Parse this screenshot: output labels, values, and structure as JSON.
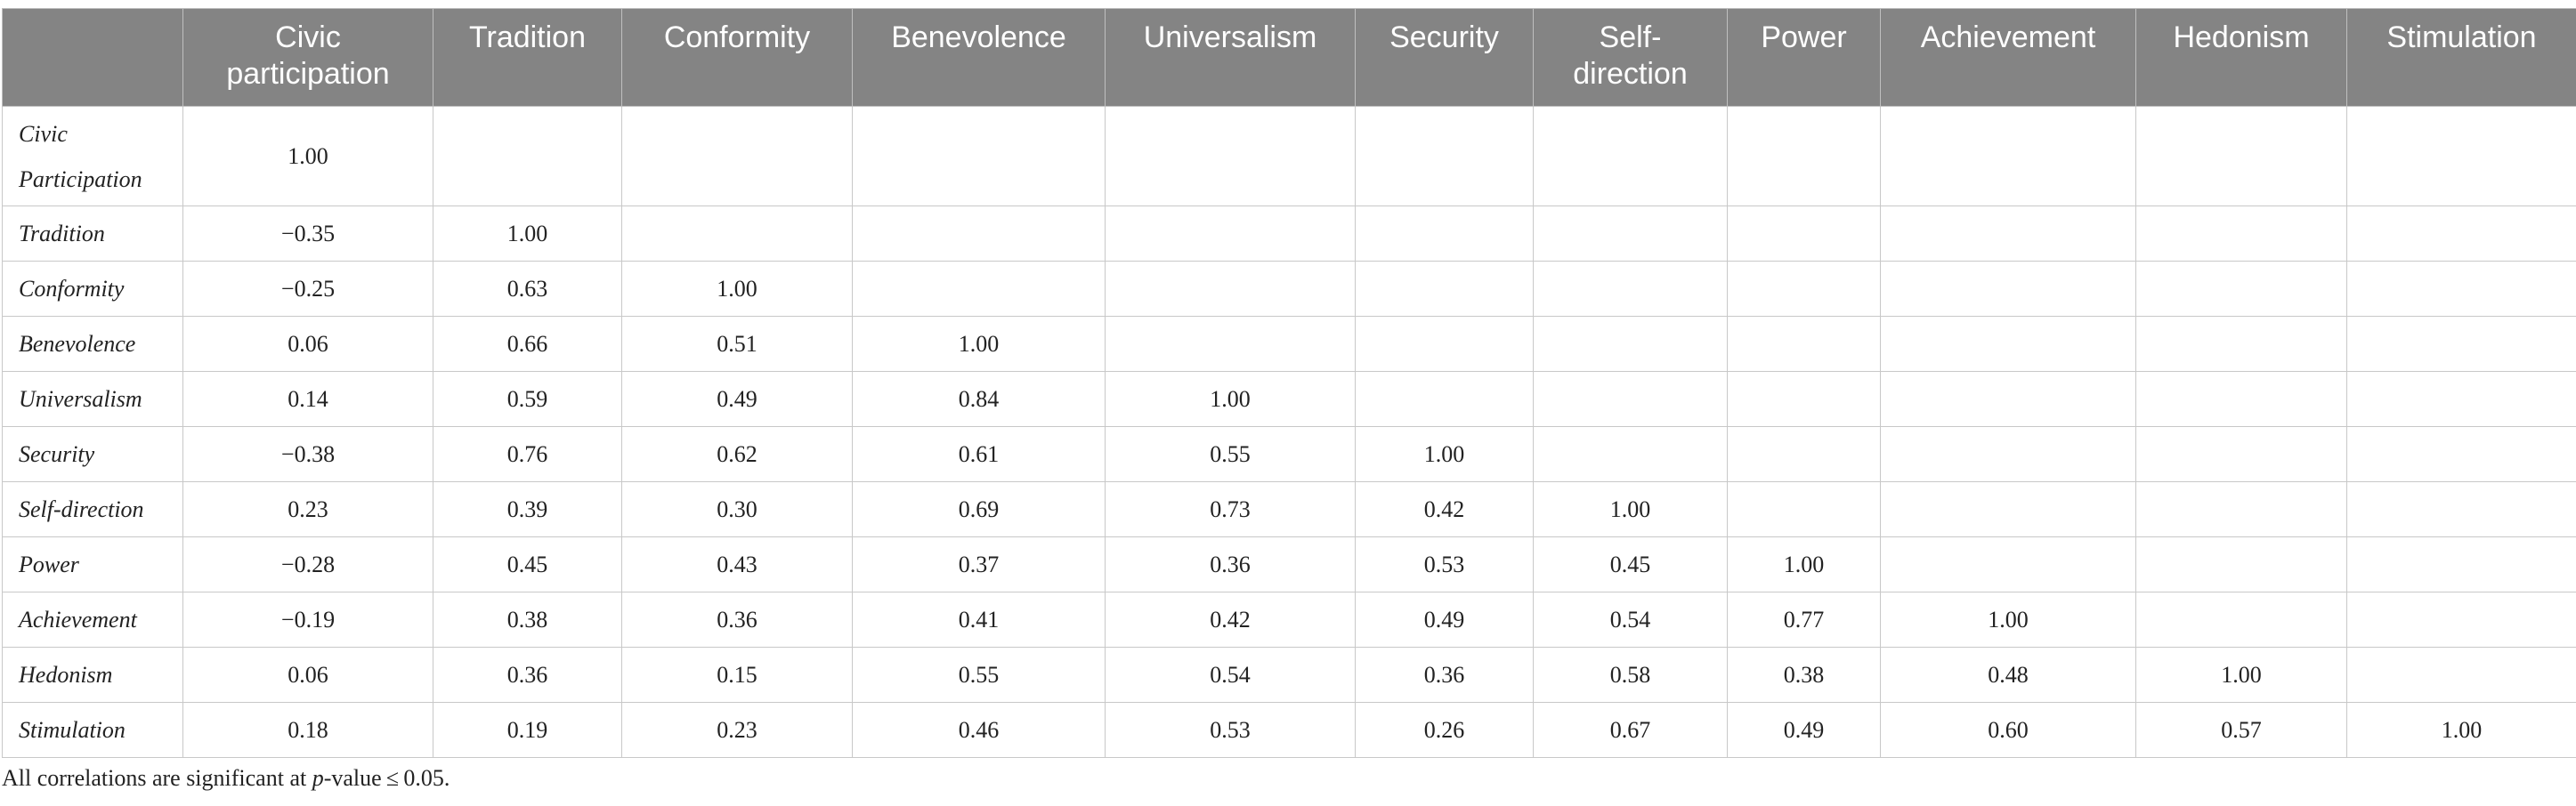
{
  "headers": [
    "",
    "Civic participation",
    "Tradition",
    "Conformity",
    "Benevolence",
    "Universalism",
    "Security",
    "Self-direction",
    "Power",
    "Achievement",
    "Hedonism",
    "Stimulation"
  ],
  "rows": [
    {
      "label": "Civic Participation",
      "values": [
        "1.00",
        "",
        "",
        "",
        "",
        "",
        "",
        "",
        "",
        "",
        ""
      ]
    },
    {
      "label": "Tradition",
      "values": [
        "−0.35",
        "1.00",
        "",
        "",
        "",
        "",
        "",
        "",
        "",
        "",
        ""
      ]
    },
    {
      "label": "Conformity",
      "values": [
        "−0.25",
        "0.63",
        "1.00",
        "",
        "",
        "",
        "",
        "",
        "",
        "",
        ""
      ]
    },
    {
      "label": "Benevolence",
      "values": [
        "0.06",
        "0.66",
        "0.51",
        "1.00",
        "",
        "",
        "",
        "",
        "",
        "",
        ""
      ]
    },
    {
      "label": "Universalism",
      "values": [
        "0.14",
        "0.59",
        "0.49",
        "0.84",
        "1.00",
        "",
        "",
        "",
        "",
        "",
        ""
      ]
    },
    {
      "label": "Security",
      "values": [
        "−0.38",
        "0.76",
        "0.62",
        "0.61",
        "0.55",
        "1.00",
        "",
        "",
        "",
        "",
        ""
      ]
    },
    {
      "label": "Self-direction",
      "values": [
        "0.23",
        "0.39",
        "0.30",
        "0.69",
        "0.73",
        "0.42",
        "1.00",
        "",
        "",
        "",
        ""
      ]
    },
    {
      "label": "Power",
      "values": [
        "−0.28",
        "0.45",
        "0.43",
        "0.37",
        "0.36",
        "0.53",
        "0.45",
        "1.00",
        "",
        "",
        ""
      ]
    },
    {
      "label": "Achievement",
      "values": [
        "−0.19",
        "0.38",
        "0.36",
        "0.41",
        "0.42",
        "0.49",
        "0.54",
        "0.77",
        "1.00",
        "",
        ""
      ]
    },
    {
      "label": "Hedonism",
      "values": [
        "0.06",
        "0.36",
        "0.15",
        "0.55",
        "0.54",
        "0.36",
        "0.58",
        "0.38",
        "0.48",
        "1.00",
        ""
      ]
    },
    {
      "label": "Stimulation",
      "values": [
        "0.18",
        "0.19",
        "0.23",
        "0.46",
        "0.53",
        "0.26",
        "0.67",
        "0.49",
        "0.60",
        "0.57",
        "1.00"
      ]
    }
  ],
  "footnote": {
    "before": "All correlations are significant at ",
    "italic": "p",
    "after": "-value ≤ 0.05."
  },
  "colors": {
    "header_bg": "#848484",
    "header_text": "#ffffff",
    "grid": "#c8c8c8"
  }
}
